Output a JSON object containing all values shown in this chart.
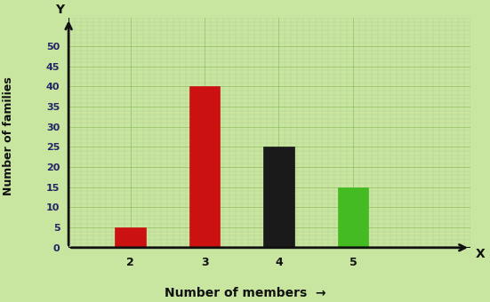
{
  "categories": [
    2,
    3,
    4,
    5
  ],
  "values": [
    5,
    40,
    25,
    15
  ],
  "bar_colors": [
    "#cc1111",
    "#cc1111",
    "#1a1a1a",
    "#44bb22"
  ],
  "bar_width": 0.5,
  "xlabel": "Number of members",
  "ylabel": "Number of families",
  "xlim": [
    0,
    6.5
  ],
  "ylim": [
    0,
    57
  ],
  "yticks": [
    0,
    5,
    10,
    15,
    20,
    25,
    30,
    35,
    40,
    45,
    50
  ],
  "background_color": "#c8e6a0",
  "grid_minor_color": "#b0d090",
  "grid_major_color": "#90bb60",
  "axis_label_fontsize": 9,
  "tick_fontsize": 8,
  "arrow_color": "#111111",
  "x_positions": [
    1.0,
    2.2,
    3.4,
    4.6
  ],
  "x_tick_labels": [
    "2",
    "3",
    "4",
    "5"
  ]
}
